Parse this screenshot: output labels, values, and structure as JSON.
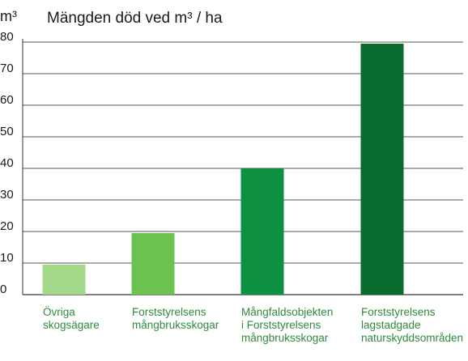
{
  "chart_data": {
    "type": "bar",
    "title": "Mängden död ved m³ / ha",
    "ylabel": "m³",
    "xlabel": "",
    "ylim": [
      0,
      80
    ],
    "yticks": [
      0,
      10,
      20,
      30,
      40,
      50,
      60,
      70,
      80
    ],
    "grid": true,
    "categories": [
      "Övriga\nskogsägare",
      "Forststyrelsens\nmångbruksskogar",
      "Mångfaldsobjekten\ni Forststyrelsens\nmångbruksskogar",
      "Forststyrelsens\nlagstadgade\nnaturskyddsområden"
    ],
    "values": [
      9.5,
      19.5,
      40,
      79.5
    ],
    "colors": [
      "#a5d98a",
      "#6cc24f",
      "#0e9140",
      "#0a6b2e"
    ]
  }
}
